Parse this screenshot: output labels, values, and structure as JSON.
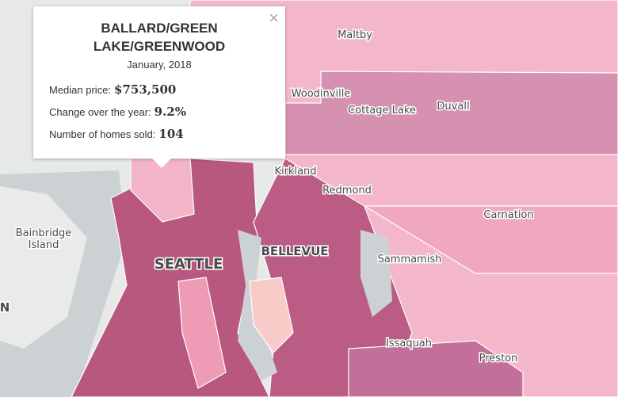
{
  "popup": {
    "title_lines": [
      "BALLARD/GREEN",
      "LAKE/GREENWOOD"
    ],
    "date": "January, 2018",
    "rows": [
      {
        "label": "Median price:",
        "value": "$753,500"
      },
      {
        "label": "Change over the year:",
        "value": "9.2%"
      },
      {
        "label": "Number of homes sold:",
        "value": "104"
      }
    ],
    "close": "×"
  },
  "places": [
    {
      "lines": [
        "Maltby"
      ]
    },
    {
      "lines": [
        "Woodinville"
      ]
    },
    {
      "lines": [
        "Cottage Lake"
      ]
    },
    {
      "lines": [
        "Duvall"
      ]
    },
    {
      "lines": [
        "Kirkland"
      ]
    },
    {
      "lines": [
        "Redmond"
      ]
    },
    {
      "lines": [
        "Carnation"
      ]
    },
    {
      "lines": [
        "Bainbridge",
        "Island"
      ]
    },
    {
      "lines": [
        "BELLEVUE"
      ]
    },
    {
      "lines": [
        "Sammamish"
      ]
    },
    {
      "lines": [
        "SEATTLE"
      ]
    },
    {
      "lines": [
        "Issaquah"
      ]
    },
    {
      "lines": [
        "Preston"
      ]
    },
    {
      "lines": [
        "N"
      ]
    }
  ]
}
